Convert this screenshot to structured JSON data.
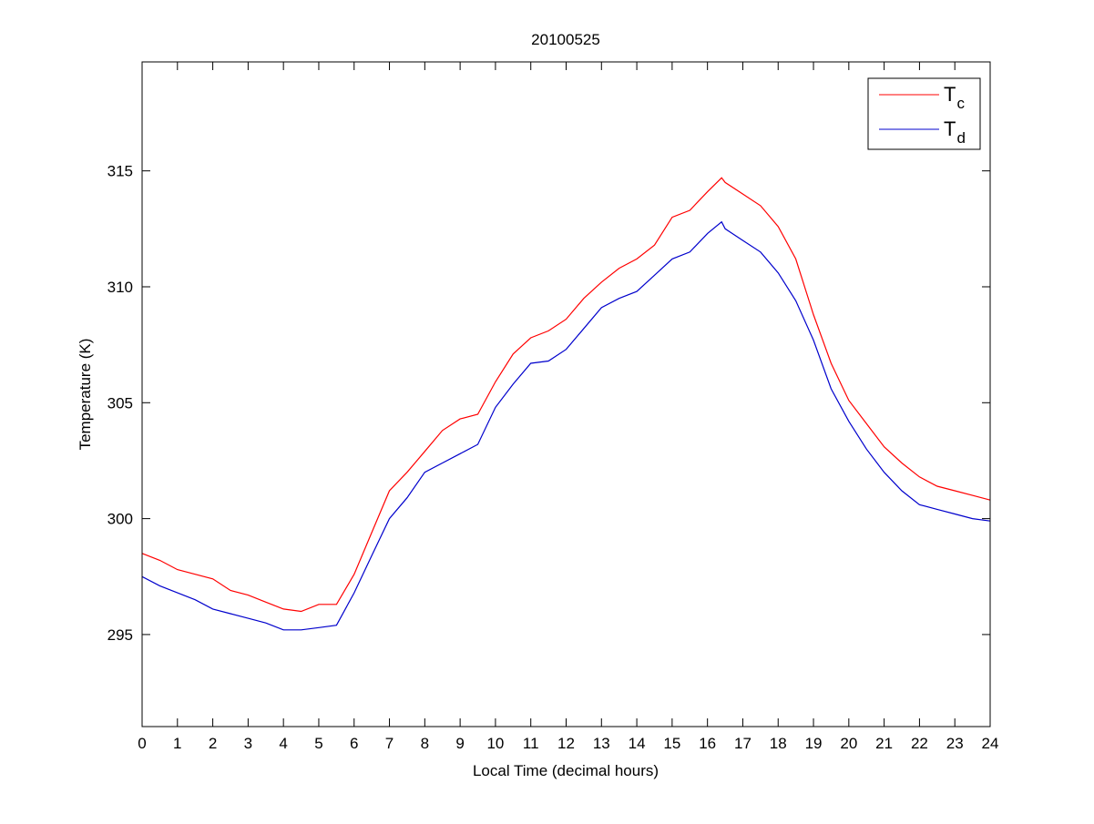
{
  "chart_data": {
    "type": "line",
    "title": "20100525",
    "xlabel": "Local Time (decimal hours)",
    "ylabel": "Temperature (K)",
    "xlim": [
      0,
      24
    ],
    "ylim": [
      291.03,
      319.7
    ],
    "xticks": [
      0,
      1,
      2,
      3,
      4,
      5,
      6,
      7,
      8,
      9,
      10,
      11,
      12,
      13,
      14,
      15,
      16,
      17,
      18,
      19,
      20,
      21,
      22,
      23,
      24
    ],
    "yticks": [
      295,
      300,
      305,
      310,
      315
    ],
    "grid": false,
    "legend_position": "top-right",
    "series": [
      {
        "name": "T",
        "subscript": "c",
        "color": "#ff0000",
        "x": [
          0,
          0.5,
          1,
          1.5,
          2,
          2.5,
          3,
          3.5,
          4,
          4.5,
          5,
          5.5,
          6,
          6.5,
          7,
          7.5,
          8,
          8.5,
          9,
          9.5,
          10,
          10.5,
          11,
          11.5,
          12,
          12.5,
          13,
          13.5,
          14,
          14.5,
          15,
          15.5,
          16,
          16.4,
          16.5,
          17,
          17.5,
          18,
          18.5,
          19,
          19.5,
          20,
          20.5,
          21,
          21.5,
          22,
          22.5,
          23,
          23.5,
          24
        ],
        "y": [
          298.5,
          298.2,
          297.8,
          297.6,
          297.4,
          296.9,
          296.7,
          296.4,
          296.1,
          296.0,
          296.3,
          296.3,
          297.6,
          299.4,
          301.2,
          302.0,
          302.9,
          303.8,
          304.3,
          304.5,
          305.9,
          307.1,
          307.8,
          308.1,
          308.6,
          309.5,
          310.2,
          310.8,
          311.2,
          311.8,
          313.0,
          313.3,
          314.1,
          314.7,
          314.5,
          314.0,
          313.5,
          312.6,
          311.2,
          308.8,
          306.7,
          305.1,
          304.1,
          303.1,
          302.4,
          301.8,
          301.4,
          301.2,
          301.0,
          300.8
        ]
      },
      {
        "name": "T",
        "subscript": "d",
        "color": "#0000cc",
        "x": [
          0,
          0.5,
          1,
          1.5,
          2,
          2.5,
          3,
          3.5,
          4,
          4.5,
          5,
          5.5,
          6,
          6.5,
          7,
          7.5,
          8,
          8.5,
          9,
          9.5,
          10,
          10.5,
          11,
          11.5,
          12,
          12.5,
          13,
          13.5,
          14,
          14.5,
          15,
          15.5,
          16,
          16.4,
          16.5,
          17,
          17.5,
          18,
          18.5,
          19,
          19.5,
          20,
          20.5,
          21,
          21.5,
          22,
          22.5,
          23,
          23.5,
          24
        ],
        "y": [
          297.5,
          297.1,
          296.8,
          296.5,
          296.1,
          295.9,
          295.7,
          295.5,
          295.2,
          295.2,
          295.3,
          295.4,
          296.8,
          298.4,
          300.0,
          300.9,
          302.0,
          302.4,
          302.8,
          303.2,
          304.8,
          305.8,
          306.7,
          306.8,
          307.3,
          308.2,
          309.1,
          309.5,
          309.8,
          310.5,
          311.2,
          311.5,
          312.3,
          312.8,
          312.5,
          312.0,
          311.5,
          310.6,
          309.4,
          307.7,
          305.6,
          304.2,
          303.0,
          302.0,
          301.2,
          300.6,
          300.4,
          300.2,
          300.0,
          299.9
        ]
      }
    ]
  }
}
